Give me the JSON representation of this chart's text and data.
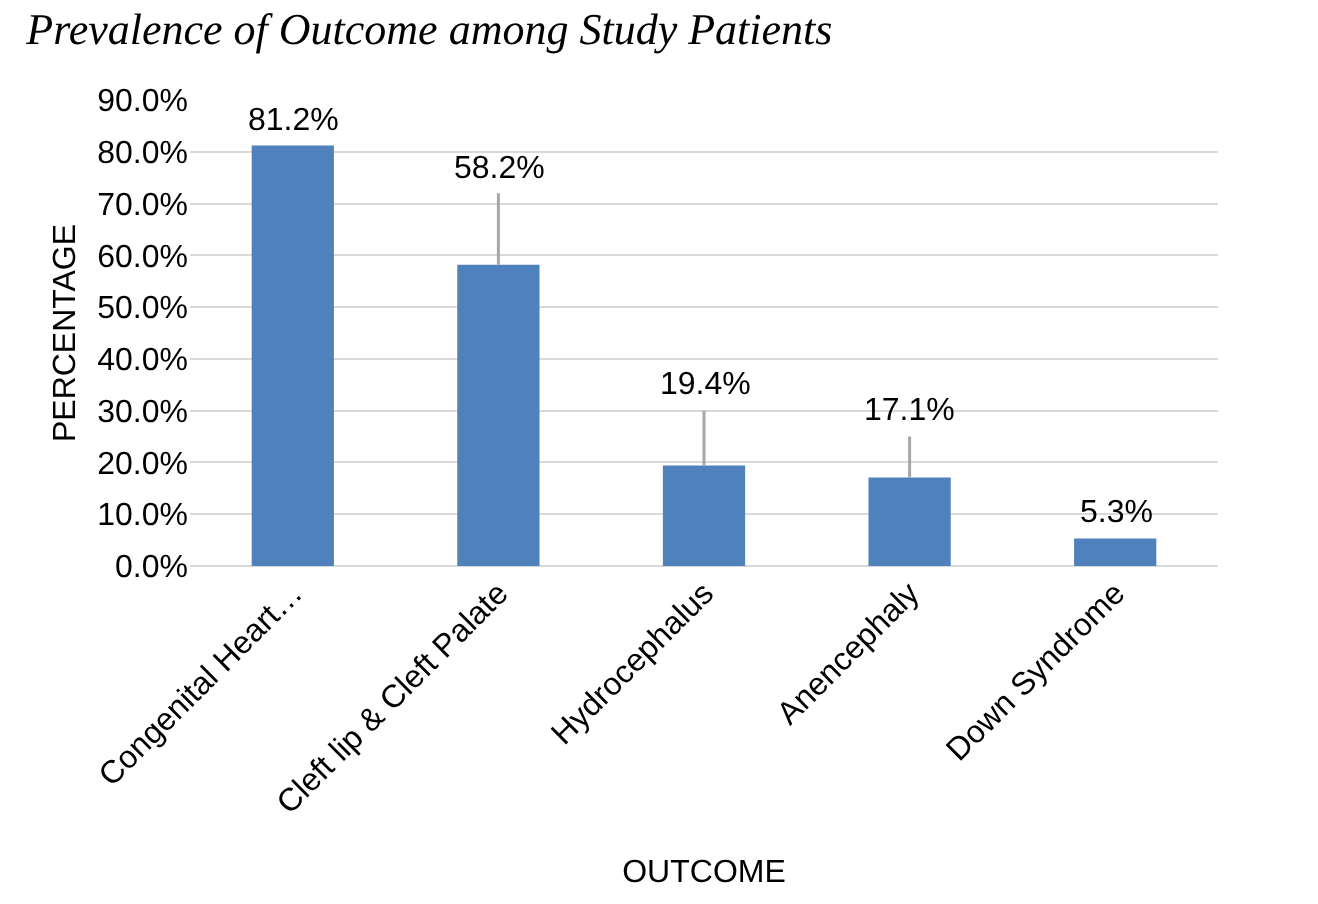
{
  "chart_data": {
    "type": "bar",
    "title": "Prevalence of Outcome among Study Patients",
    "xlabel": "OUTCOME",
    "ylabel": "PERCENTAGE",
    "categories": [
      "Congenital Heart…",
      "Cleft lip & Cleft Palate",
      "Hydrocephalus",
      "Anencephaly",
      "Down Syndrome"
    ],
    "values": [
      81.2,
      58.2,
      19.4,
      17.1,
      5.3
    ],
    "value_labels": [
      "81.2%",
      "58.2%",
      "19.4%",
      "17.1%",
      "5.3%"
    ],
    "errors": [
      null,
      [
        58.2,
        72
      ],
      [
        19.4,
        30
      ],
      [
        17.1,
        25
      ],
      null
    ],
    "color": "#4f81bd",
    "ylim": [
      0,
      90
    ],
    "yticks": [
      {
        "value": 0,
        "label": "0.0%"
      },
      {
        "value": 10,
        "label": "10.0%"
      },
      {
        "value": 20,
        "label": "20.0%"
      },
      {
        "value": 30,
        "label": "30.0%"
      },
      {
        "value": 40,
        "label": "40.0%"
      },
      {
        "value": 50,
        "label": "50.0%"
      },
      {
        "value": 60,
        "label": "60.0%"
      },
      {
        "value": 70,
        "label": "70.0%"
      },
      {
        "value": 80,
        "label": "80.0%"
      },
      {
        "value": 90,
        "label": "90.0%"
      }
    ],
    "grid": true
  }
}
